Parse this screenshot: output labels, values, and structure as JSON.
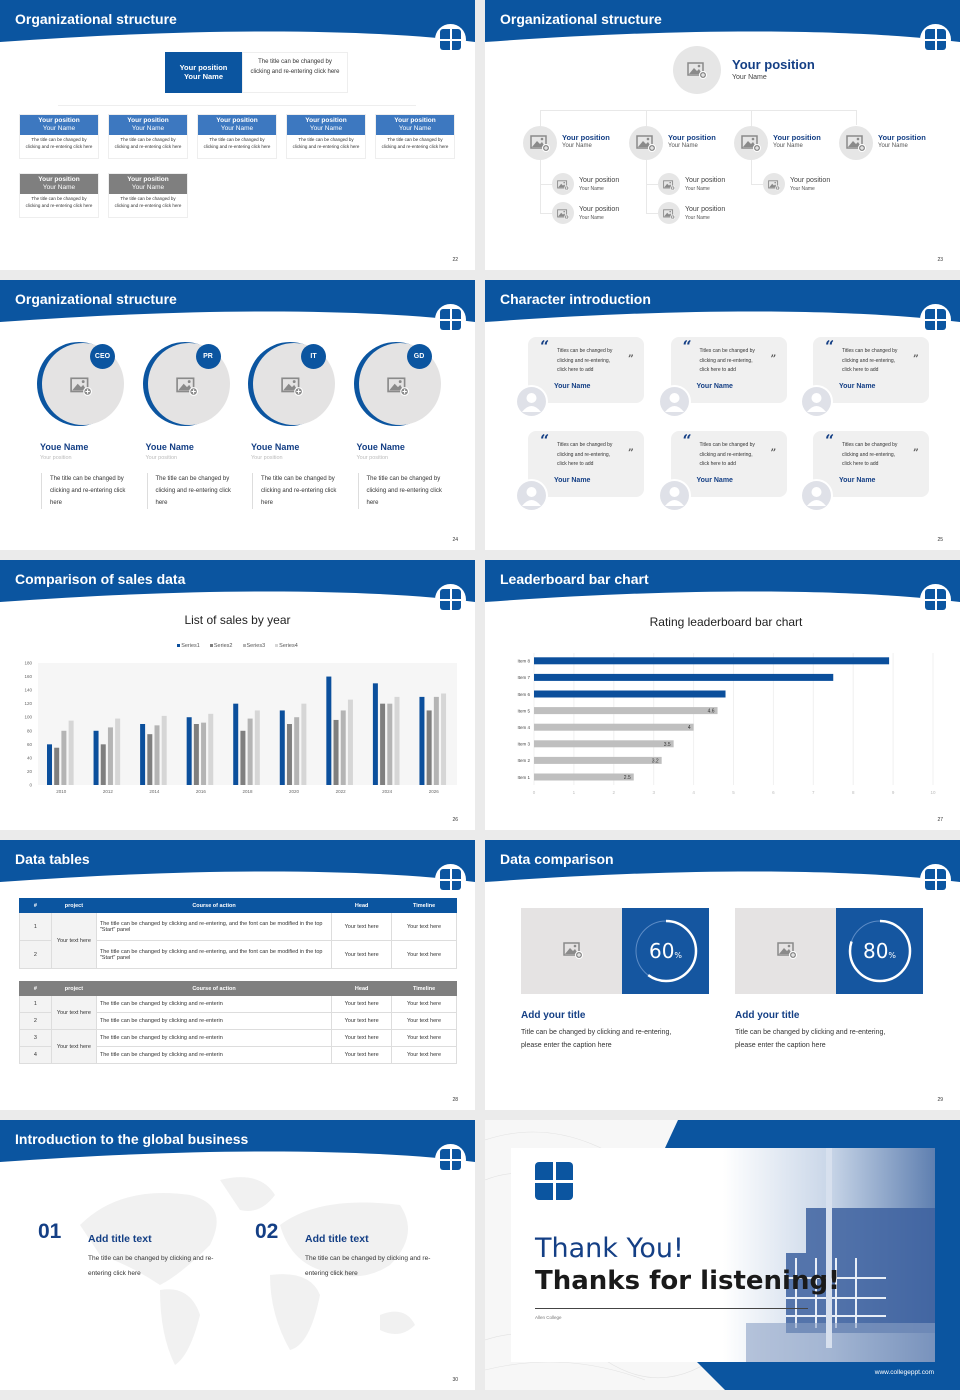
{
  "brand": {
    "blue": "#0b55a0",
    "light_blue": "#3d78c0",
    "gray": "#7f7f7f"
  },
  "slides": [
    {
      "title": "Organizational structure",
      "page": "22",
      "top": {
        "position": "Your position",
        "name": "Your Name",
        "desc": "The title can be changed by clicking and re-entering click here"
      },
      "members": [
        {
          "position": "Your position",
          "name": "Your Name",
          "desc": "The title can be changed by clicking and re-entering click here",
          "tone": "blue"
        },
        {
          "position": "Your position",
          "name": "Your Name",
          "desc": "The title can be changed by clicking and re-entering click here",
          "tone": "blue"
        },
        {
          "position": "Your position",
          "name": "Your Name",
          "desc": "The title can be changed by clicking and re-entering click here",
          "tone": "blue"
        },
        {
          "position": "Your position",
          "name": "Your Name",
          "desc": "The title can be changed by clicking and re-entering click here",
          "tone": "blue"
        },
        {
          "position": "Your position",
          "name": "Your Name",
          "desc": "The title can be changed by clicking and re-entering click here",
          "tone": "blue"
        },
        {
          "position": "Your position",
          "name": "Your Name",
          "desc": "The title can be changed by clicking and re-entering click here",
          "tone": "gray"
        },
        {
          "position": "Your position",
          "name": "Your Name",
          "desc": "The title can be changed by clicking and re-entering click here",
          "tone": "gray"
        }
      ]
    },
    {
      "title": "Organizational structure",
      "page": "23",
      "top": {
        "position": "Your position",
        "name": "Your Name"
      },
      "level1": [
        {
          "position": "Your position",
          "name": "Your Name"
        },
        {
          "position": "Your position",
          "name": "Your Name"
        },
        {
          "position": "Your position",
          "name": "Your Name"
        },
        {
          "position": "Your position",
          "name": "Your Name"
        }
      ],
      "level2": [
        {
          "parent": 0,
          "position": "Your position",
          "name": "Your Name"
        },
        {
          "parent": 0,
          "position": "Your position",
          "name": "Your Name"
        },
        {
          "parent": 1,
          "position": "Your position",
          "name": "Your Name"
        },
        {
          "parent": 1,
          "position": "Your position",
          "name": "Your Name"
        },
        {
          "parent": 2,
          "position": "Your position",
          "name": "Your Name"
        }
      ]
    },
    {
      "title": "Organizational structure",
      "page": "24",
      "people": [
        {
          "badge": "CEO",
          "name": "Youe Name",
          "position": "Your position",
          "desc": "The title can be changed by clicking and re-entering click here"
        },
        {
          "badge": "PR",
          "name": "Youe Name",
          "position": "Your position",
          "desc": "The title can be changed by clicking and re-entering click here"
        },
        {
          "badge": "IT",
          "name": "Youe Name",
          "position": "Your position",
          "desc": "The title can be changed by clicking and re-entering click here"
        },
        {
          "badge": "GD",
          "name": "Youe Name",
          "position": "Your position",
          "desc": "The title can be changed by clicking and re-entering click here"
        }
      ]
    },
    {
      "title": "Character introduction",
      "page": "25",
      "cards": [
        {
          "quote": "Titles can be changed by clicking and re-entering, click here to add",
          "name": "Your Name"
        },
        {
          "quote": "Titles can be changed by clicking and re-entering, click here to add",
          "name": "Your Name"
        },
        {
          "quote": "Titles can be changed by clicking and re-entering, click here to add",
          "name": "Your Name"
        },
        {
          "quote": "Titles can be changed by clicking and re-entering, click here to add",
          "name": "Your Name"
        },
        {
          "quote": "Titles can be changed by clicking and re-entering, click here to add",
          "name": "Your Name"
        },
        {
          "quote": "Titles can be changed by clicking and re-entering, click here to add",
          "name": "Your Name"
        }
      ],
      "open_quote": "“",
      "close_quote": "”"
    },
    {
      "title": "Comparison of sales data",
      "page": "26"
    },
    {
      "title": "Leaderboard bar chart",
      "page": "27"
    },
    {
      "title": "Data tables",
      "page": "28",
      "headers": [
        "#",
        "project",
        "Course of action",
        "Head",
        "Timeline"
      ],
      "table1": {
        "project": "Your text here",
        "rows": [
          {
            "n": "1",
            "action": "The title can be changed by clicking and re-entering, and the font can be modified in the top \"Start\" panel",
            "head": "Your text here",
            "timeline": "Your text here"
          },
          {
            "n": "2",
            "action": "The title can be changed by clicking and re-entering, and the font can be modified in the top \"Start\" panel",
            "head": "Your text here",
            "timeline": "Your text here"
          }
        ]
      },
      "table2": {
        "projects": [
          "Your text here",
          "Your text here"
        ],
        "rows": [
          {
            "n": "1",
            "action": "The title can be changed by clicking and re-enterin",
            "head": "Your text here",
            "timeline": "Your text here"
          },
          {
            "n": "2",
            "action": "The title can be changed by clicking and re-enterin",
            "head": "Your text here",
            "timeline": "Your text here"
          },
          {
            "n": "3",
            "action": "The title can be changed by clicking and re-enterin",
            "head": "Your text here",
            "timeline": "Your text here"
          },
          {
            "n": "4",
            "action": "The title can be changed by clicking and re-enterin",
            "head": "Your text here",
            "timeline": "Your text here"
          }
        ]
      }
    },
    {
      "title": "Data comparison",
      "page": "29",
      "items": [
        {
          "percent": 60,
          "value": "60",
          "unit": "%",
          "title": "Add your title",
          "desc": "Title can be changed by clicking and re-entering, please enter the caption here"
        },
        {
          "percent": 80,
          "value": "80",
          "unit": "%",
          "title": "Add your title",
          "desc": "Title can be changed by clicking and re-entering, please enter the caption here"
        }
      ]
    },
    {
      "title": "Introduction to the global business",
      "page": "30",
      "items": [
        {
          "num": "01",
          "title": "Add title text",
          "desc": "The title can be changed by clicking and re-entering click here"
        },
        {
          "num": "02",
          "title": "Add title text",
          "desc": "The title can be changed by clicking and re-entering click here"
        }
      ]
    },
    {
      "thanks": "Thank You!",
      "subtitle": "Thanks for listening!",
      "college": "Allen College",
      "url": "www.collegeppt.com"
    }
  ],
  "chart_data": [
    {
      "type": "bar",
      "title": "List of sales by year",
      "categories": [
        "2010",
        "2012",
        "2014",
        "2016",
        "2018",
        "2020",
        "2022",
        "2024",
        "2026"
      ],
      "series": [
        {
          "name": "Series1",
          "color": "#0b4f9c",
          "values": [
            60,
            80,
            90,
            100,
            120,
            110,
            160,
            150,
            130
          ]
        },
        {
          "name": "Series2",
          "color": "#7f7f7f",
          "values": [
            55,
            60,
            75,
            90,
            80,
            90,
            96,
            120,
            110
          ]
        },
        {
          "name": "Series3",
          "color": "#b4b4b4",
          "values": [
            80,
            85,
            88,
            92,
            98,
            100,
            110,
            120,
            130
          ]
        },
        {
          "name": "Series4",
          "color": "#d6d6d6",
          "values": [
            95,
            98,
            102,
            105,
            110,
            120,
            126,
            130,
            135
          ]
        }
      ],
      "ylim": [
        0,
        180
      ],
      "yticks": [
        0,
        20,
        40,
        60,
        80,
        100,
        120,
        140,
        160,
        180
      ],
      "legend": "top",
      "grid": false
    },
    {
      "type": "bar",
      "orientation": "horizontal",
      "title": "Rating leaderboard bar chart",
      "categories": [
        "Item 1",
        "Item 2",
        "Item 3",
        "Item 4",
        "Item 5",
        "Item 6",
        "Item 7",
        "Item 8"
      ],
      "values": [
        2.5,
        3.2,
        3.5,
        4,
        4.6,
        4.8,
        7.5,
        8.9
      ],
      "data_labels": [
        "2.5",
        "3.2",
        "3.5",
        "4",
        "4.6",
        "",
        "",
        ""
      ],
      "highlight_color": "#0b4f9c",
      "base_color": "#bfbfbf",
      "highlight_top": 3,
      "xlim": [
        0,
        10
      ],
      "xticks": [
        0,
        1,
        2,
        3,
        4,
        5,
        6,
        7,
        8,
        9,
        10
      ],
      "grid": true
    }
  ]
}
